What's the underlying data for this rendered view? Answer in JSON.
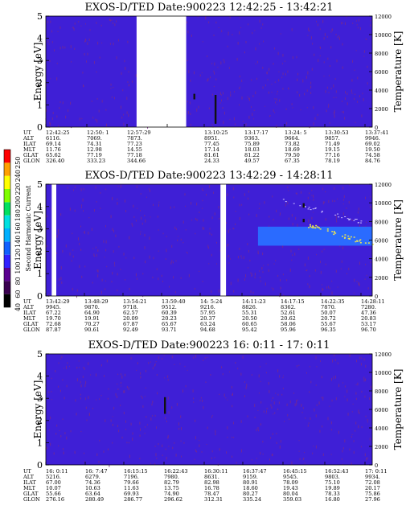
{
  "colors": {
    "background": "#3f1fd6",
    "speckle": "#7a2a8a",
    "band": "#2a6bff",
    "band_hot": "#e6e05a",
    "event": "#111111"
  },
  "colorbar": {
    "label": "Second Harmonic Current",
    "ticks": [
      "40",
      "60",
      "80",
      "100",
      "120",
      "140",
      "160",
      "180",
      "200",
      "220",
      "240",
      "250"
    ],
    "colors": [
      "#000000",
      "#3a0050",
      "#5a0090",
      "#3020ff",
      "#1060ff",
      "#00b0ff",
      "#00e0e0",
      "#00e060",
      "#80ff00",
      "#ffff00",
      "#ffa000",
      "#ff0000"
    ]
  },
  "chart_data": [
    {
      "type": "heatmap",
      "title": "EXOS-D/TED   Date:900223   12:42:25 - 13:42:21",
      "ylabel": "Energy [eV]",
      "y2label": "Temperature [K]",
      "ylim": [
        0,
        5
      ],
      "y2lim": [
        0,
        12000
      ],
      "yticks": [
        "0",
        "1",
        "2",
        "3",
        "4",
        "5"
      ],
      "y2ticks": [
        "0",
        "2000",
        "4000",
        "6000",
        "8000",
        "10000",
        "12000"
      ],
      "gap": [
        0.278,
        0.43
      ],
      "events": [
        {
          "x": 0.455,
          "y0": 1.5,
          "y1": 1.25
        },
        {
          "x": 0.52,
          "y0": 1.45,
          "y1": 0.15
        }
      ],
      "band": null,
      "rows": [
        {
          "label": "UT",
          "values": [
            "12:42:25",
            "12:50: 1",
            "12:57:29",
            "",
            "13:10:25",
            "13:17:17",
            "13:24: 5",
            "13:30:53",
            "13:37:41"
          ]
        },
        {
          "label": "ALT",
          "values": [
            "6116.",
            "7069.",
            "7873.",
            "",
            "8951.",
            "9363.",
            "9664.",
            "9857.",
            "9946."
          ]
        },
        {
          "label": "ILAT",
          "values": [
            "69.14",
            "74.31",
            "77.23",
            "",
            "77.45",
            "75.89",
            "73.82",
            "71.49",
            "69.02"
          ]
        },
        {
          "label": "MLT",
          "values": [
            "11.76",
            "12.98",
            "14.55",
            "",
            "17.14",
            "18.03",
            "18.69",
            "19.15",
            "19.50"
          ]
        },
        {
          "label": "GLAT",
          "values": [
            "65.62",
            "77.19",
            "77.18",
            "",
            "81.61",
            "81.22",
            "79.50",
            "77.16",
            "74.58"
          ]
        },
        {
          "label": "GLON",
          "values": [
            "326.40",
            "333.23",
            "344.66",
            "",
            "24.33",
            "49.57",
            "67.35",
            "78.19",
            "84.76"
          ]
        }
      ]
    },
    {
      "type": "heatmap",
      "title": "EXOS-D/TED   Date:900223   13:42:29 - 14:28:11",
      "ylabel": "Energy [eV]",
      "y2label": "Temperature [K]",
      "ylim": [
        0,
        5
      ],
      "y2lim": [
        0,
        12000
      ],
      "yticks": [
        "0",
        "1",
        "2",
        "3",
        "4",
        "5"
      ],
      "y2ticks": [
        "0",
        "2000",
        "4000",
        "6000",
        "8000",
        "10000",
        "12000"
      ],
      "gaps": [
        [
          0.018,
          0.032
        ],
        [
          0.535,
          0.552
        ]
      ],
      "events": [
        {
          "x": 0.79,
          "y0": 4.15,
          "y1": 3.95
        },
        {
          "x": 0.79,
          "y0": 3.45,
          "y1": 3.3
        }
      ],
      "band": {
        "x0": 0.65,
        "x1": 1.0,
        "y0": 2.25,
        "y1": 3.1
      },
      "rows": [
        {
          "label": "UT",
          "values": [
            "13:42:29",
            "13:48:29",
            "13:54:21",
            "13:59:40",
            "14: 5:24",
            "14:11:23",
            "14:17:15",
            "14:22:35",
            "14:28:11"
          ]
        },
        {
          "label": "ALT",
          "values": [
            "9945.",
            "9870.",
            "9718.",
            "9512.",
            "9216.",
            "8826.",
            "8362.",
            "7870.",
            "7280."
          ]
        },
        {
          "label": "ILAT",
          "values": [
            "67.22",
            "64.90",
            "62.57",
            "60.39",
            "57.95",
            "55.31",
            "52.61",
            "50.07",
            "47.36"
          ]
        },
        {
          "label": "MLT",
          "values": [
            "19.70",
            "19.91",
            "20.09",
            "20.23",
            "20.37",
            "20.50",
            "20.62",
            "20.72",
            "20.83"
          ]
        },
        {
          "label": "GLAT",
          "values": [
            "72.68",
            "70.27",
            "67.87",
            "65.67",
            "63.24",
            "60.65",
            "58.06",
            "55.67",
            "53.17"
          ]
        },
        {
          "label": "GLON",
          "values": [
            "87.87",
            "90.61",
            "92.49",
            "93.71",
            "94.68",
            "95.42",
            "95.96",
            "96.35",
            "96.70"
          ]
        }
      ]
    },
    {
      "type": "heatmap",
      "title": "EXOS-D/TED   Date:900223   16: 0:11 - 17: 0:11",
      "ylabel": "Energy [eV]",
      "y2label": "Temperature [K]",
      "ylim": [
        0,
        5
      ],
      "y2lim": [
        0,
        12000
      ],
      "yticks": [
        "0",
        "1",
        "2",
        "3",
        "4",
        "5"
      ],
      "y2ticks": [
        "0",
        "2000",
        "4000",
        "6000",
        "8000",
        "10000",
        "12000"
      ],
      "gap": null,
      "events": [
        {
          "x": 0.365,
          "y0": 3.05,
          "y1": 2.3
        }
      ],
      "band": null,
      "rows": [
        {
          "label": "UT",
          "values": [
            "16: 0:11",
            "16: 7:47",
            "16:15:15",
            "16:22:43",
            "16:30:11",
            "16:37:47",
            "16:45:15",
            "16:52:43",
            "17: 0:11"
          ]
        },
        {
          "label": "ALT",
          "values": [
            "5216.",
            "6279.",
            "7196.",
            "7980.",
            "8631.",
            "9159.",
            "9545.",
            "9803.",
            "9934."
          ]
        },
        {
          "label": "ILAT",
          "values": [
            "67.00",
            "74.36",
            "79.66",
            "82.79",
            "82.98",
            "80.91",
            "78.09",
            "75.10",
            "72.08"
          ]
        },
        {
          "label": "MLT",
          "values": [
            "10.07",
            "10.63",
            "11.63",
            "13.75",
            "16.78",
            "18.60",
            "19.43",
            "19.89",
            "20.17"
          ]
        },
        {
          "label": "GLAT",
          "values": [
            "55.66",
            "63.64",
            "69.93",
            "74.90",
            "78.47",
            "80.27",
            "80.04",
            "78.33",
            "75.86"
          ]
        },
        {
          "label": "GLON",
          "values": [
            "276.16",
            "280.49",
            "286.77",
            "296.62",
            "312.31",
            "335.24",
            "359.03",
            "16.80",
            "27.96"
          ]
        }
      ]
    }
  ]
}
